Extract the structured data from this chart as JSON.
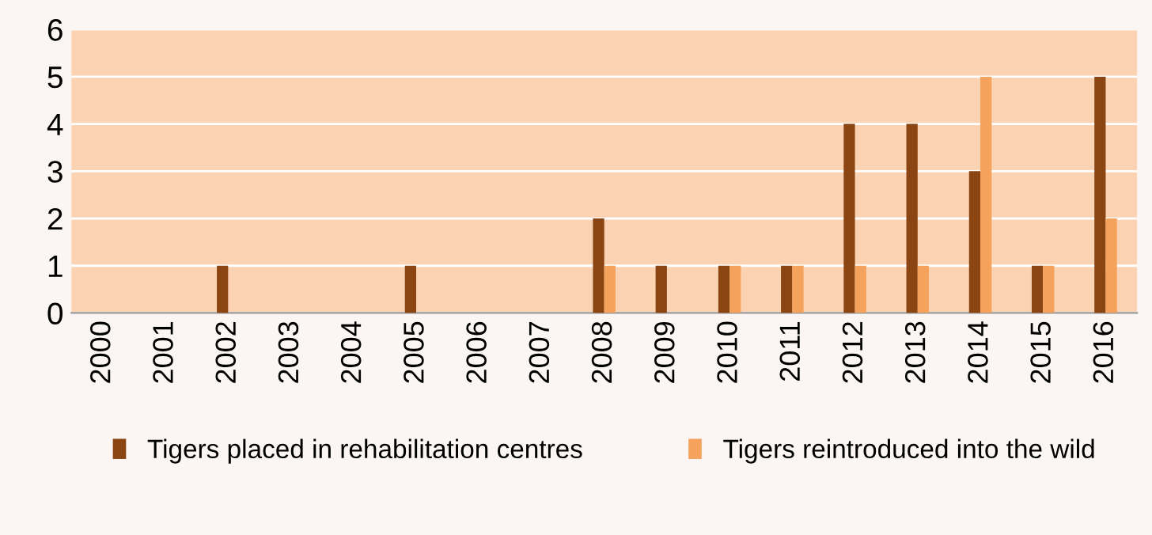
{
  "chart_data": {
    "type": "bar",
    "categories": [
      "2000",
      "2001",
      "2002",
      "2003",
      "2004",
      "2005",
      "2006",
      "2007",
      "2008",
      "2009",
      "2010",
      "2011",
      "2012",
      "2013",
      "2014",
      "2015",
      "2016"
    ],
    "series": [
      {
        "name": "Tigers placed in rehabilitation centres",
        "color": "#8b4513",
        "values": [
          0,
          0,
          1,
          0,
          0,
          1,
          0,
          0,
          2,
          1,
          1,
          1,
          4,
          4,
          3,
          1,
          5
        ]
      },
      {
        "name": "Tigers reintroduced into the wild",
        "color": "#f5a25d",
        "values": [
          0,
          0,
          0,
          0,
          0,
          0,
          0,
          0,
          1,
          0,
          1,
          1,
          1,
          1,
          5,
          1,
          2
        ]
      }
    ],
    "ylim": [
      0,
      6
    ],
    "yticks": [
      0,
      1,
      2,
      3,
      4,
      5,
      6
    ],
    "grid": "y",
    "legend": "bottom"
  }
}
